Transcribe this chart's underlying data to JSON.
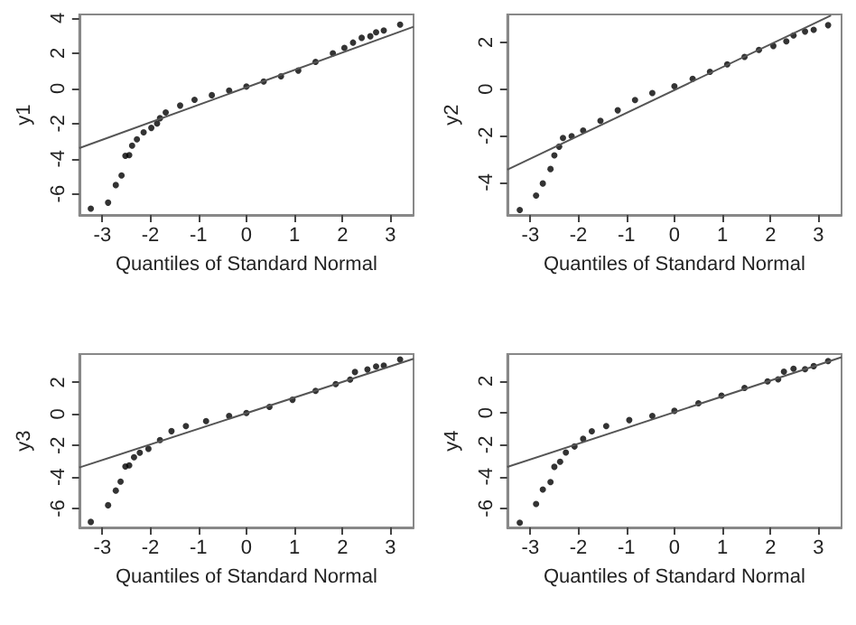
{
  "chart_data": [
    {
      "type": "scatter",
      "xlabel": "Quantiles of Standard Normal",
      "ylabel": "y1",
      "xlim": [
        -3.48,
        3.48
      ],
      "ylim": [
        -7.2,
        4.2
      ],
      "xticks": [
        -3,
        -2,
        -1,
        0,
        1,
        2,
        3
      ],
      "yticks": [
        -6,
        -4,
        -2,
        0,
        2,
        4
      ],
      "grid": false,
      "marker": "circle",
      "series": [
        {
          "type": "scatter",
          "color": "#000000",
          "x": [
            -3.24,
            -2.88,
            -2.72,
            -2.6,
            -2.52,
            -2.44,
            -2.38,
            -2.28,
            -2.14,
            -1.98,
            -1.86,
            -1.8,
            -1.68,
            -1.38,
            -1.08,
            -0.72,
            -0.36,
            0,
            0.36,
            0.72,
            1.08,
            1.44,
            1.8,
            2.04,
            2.22,
            2.4,
            2.58,
            2.7,
            2.86,
            3.2
          ],
          "values": [
            -6.84,
            -6.5,
            -5.5,
            -4.95,
            -3.84,
            -3.8,
            -3.26,
            -2.9,
            -2.5,
            -2.25,
            -2.0,
            -1.7,
            -1.37,
            -0.98,
            -0.65,
            -0.39,
            -0.13,
            0.1,
            0.39,
            0.68,
            1.01,
            1.5,
            1.99,
            2.3,
            2.6,
            2.87,
            2.96,
            3.19,
            3.29,
            3.62
          ]
        },
        {
          "type": "line",
          "marker": "none",
          "color": "#555555",
          "x": [
            -3.48,
            3.48
          ],
          "values": [
            -3.4,
            3.5
          ]
        }
      ]
    },
    {
      "type": "scatter",
      "xlabel": "Quantiles of Standard Normal",
      "ylabel": "y2",
      "xlim": [
        -3.48,
        3.48
      ],
      "ylim": [
        -5.4,
        3.2
      ],
      "xticks": [
        -3,
        -2,
        -1,
        0,
        1,
        2,
        3
      ],
      "yticks": [
        -4,
        -2,
        0,
        2
      ],
      "grid": false,
      "marker": "circle",
      "series": [
        {
          "type": "scatter",
          "color": "#000000",
          "x": [
            -3.22,
            -2.88,
            -2.74,
            -2.58,
            -2.5,
            -2.4,
            -2.32,
            -2.14,
            -1.9,
            -1.54,
            -1.18,
            -0.82,
            -0.46,
            0,
            0.38,
            0.74,
            1.1,
            1.46,
            1.76,
            2.06,
            2.33,
            2.48,
            2.72,
            2.9,
            3.2
          ],
          "values": [
            -5.19,
            -4.57,
            -4.05,
            -3.43,
            -2.84,
            -2.47,
            -2.1,
            -2.02,
            -1.78,
            -1.36,
            -0.91,
            -0.47,
            -0.17,
            0.12,
            0.44,
            0.74,
            1.06,
            1.38,
            1.68,
            1.85,
            2.05,
            2.3,
            2.47,
            2.54,
            2.74
          ]
        },
        {
          "type": "line",
          "marker": "none",
          "color": "#555555",
          "x": [
            -3.48,
            3.26
          ],
          "values": [
            -3.46,
            3.16
          ]
        }
      ]
    },
    {
      "type": "scatter",
      "xlabel": "Quantiles of Standard Normal",
      "ylabel": "y3",
      "xlim": [
        -3.48,
        3.48
      ],
      "ylim": [
        -7.2,
        3.8
      ],
      "xticks": [
        -3,
        -2,
        -1,
        0,
        1,
        2,
        3
      ],
      "yticks": [
        -6,
        -4,
        -2,
        0,
        2
      ],
      "grid": false,
      "marker": "circle",
      "series": [
        {
          "type": "scatter",
          "color": "#000000",
          "x": [
            -3.24,
            -2.88,
            -2.72,
            -2.62,
            -2.52,
            -2.44,
            -2.34,
            -2.22,
            -2.04,
            -1.8,
            -1.56,
            -1.26,
            -0.84,
            -0.36,
            0,
            0.48,
            0.96,
            1.44,
            1.86,
            2.16,
            2.26,
            2.52,
            2.7,
            2.86,
            3.2
          ],
          "values": [
            -6.85,
            -5.79,
            -4.86,
            -4.29,
            -3.33,
            -3.26,
            -2.75,
            -2.46,
            -2.21,
            -1.66,
            -1.09,
            -0.77,
            -0.45,
            -0.13,
            0.06,
            0.45,
            0.9,
            1.47,
            1.89,
            2.18,
            2.66,
            2.82,
            3.01,
            3.07,
            3.46
          ]
        },
        {
          "type": "line",
          "marker": "none",
          "color": "#555555",
          "x": [
            -3.48,
            3.48
          ],
          "values": [
            -3.4,
            3.5
          ]
        }
      ]
    },
    {
      "type": "scatter",
      "xlabel": "Quantiles of Standard Normal",
      "ylabel": "y4",
      "xlim": [
        -3.48,
        3.48
      ],
      "ylim": [
        -7.2,
        3.7
      ],
      "xticks": [
        -3,
        -2,
        -1,
        0,
        1,
        2,
        3
      ],
      "yticks": [
        -6,
        -4,
        -2,
        0,
        2
      ],
      "grid": false,
      "marker": "circle",
      "series": [
        {
          "type": "scatter",
          "color": "#000000",
          "x": [
            -3.22,
            -2.88,
            -2.74,
            -2.58,
            -2.5,
            -2.38,
            -2.26,
            -2.08,
            -1.9,
            -1.72,
            -1.42,
            -0.94,
            -0.46,
            0,
            0.5,
            0.98,
            1.46,
            1.94,
            2.16,
            2.28,
            2.48,
            2.72,
            2.9,
            3.2
          ],
          "values": [
            -6.9,
            -5.72,
            -4.82,
            -4.35,
            -3.39,
            -3.07,
            -2.49,
            -2.11,
            -1.63,
            -1.15,
            -0.83,
            -0.45,
            -0.19,
            0.13,
            0.61,
            1.09,
            1.57,
            1.98,
            2.11,
            2.59,
            2.78,
            2.75,
            2.94,
            3.26
          ]
        },
        {
          "type": "line",
          "marker": "none",
          "color": "#555555",
          "x": [
            -3.48,
            3.48
          ],
          "values": [
            -3.4,
            3.5
          ]
        }
      ]
    }
  ]
}
